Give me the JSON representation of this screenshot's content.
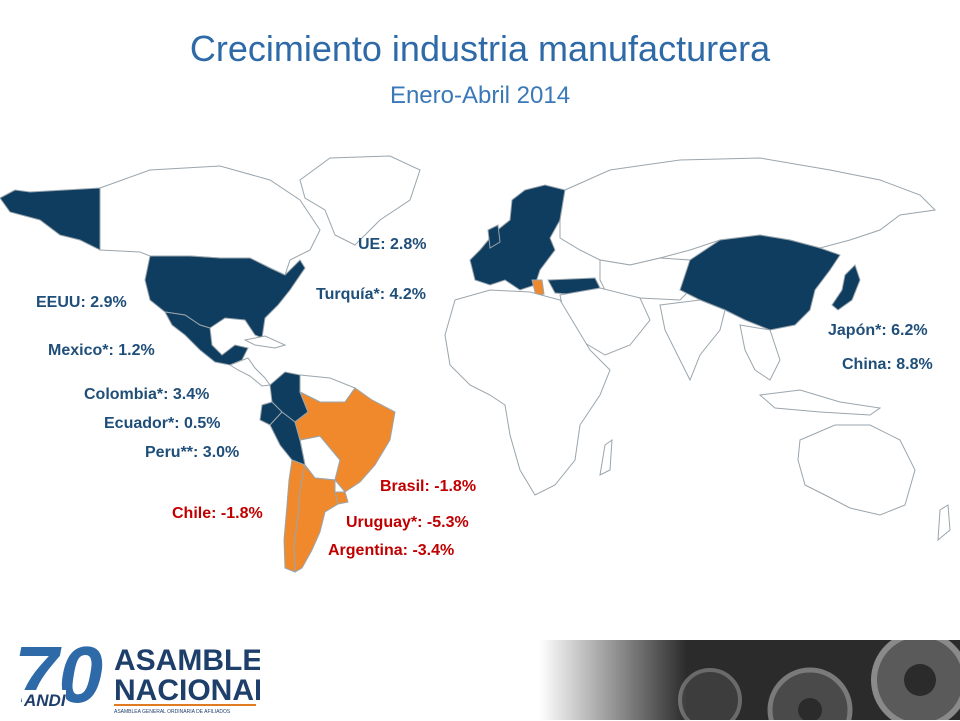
{
  "header": {
    "title": "Crecimiento industria manufacturera",
    "subtitle": "Enero-Abril 2014"
  },
  "colors": {
    "positive_fill": "#0f3d5f",
    "negative_fill": "#f0892b",
    "neutral_fill": "#ffffff",
    "border": "#9aa5ad",
    "positive_text": "#1f4e79",
    "negative_text": "#c00000"
  },
  "labels": {
    "ue": "UE: 2.8%",
    "turquia": "Turquía*: 4.2%",
    "eeuu": "EEUU: 2.9%",
    "mexico": "Mexico*: 1.2%",
    "colombia": "Colombia*: 3.4%",
    "ecuador": "Ecuador*: 0.5%",
    "peru": "Peru**: 3.0%",
    "brasil": "Brasil: -1.8%",
    "chile": "Chile: -1.8%",
    "uruguay": "Uruguay*: -5.3%",
    "argentina": "Argentina: -3.4%",
    "japon": "Japón*: 6.2%",
    "china": "China: 8.8%"
  },
  "logo": {
    "number": "70",
    "brand": "ANDI",
    "line1": "ASAMBLEA",
    "line2": "NACIONAL",
    "tagline": "ASAMBLEA GENERAL ORDINARIA DE AFILIADOS"
  }
}
